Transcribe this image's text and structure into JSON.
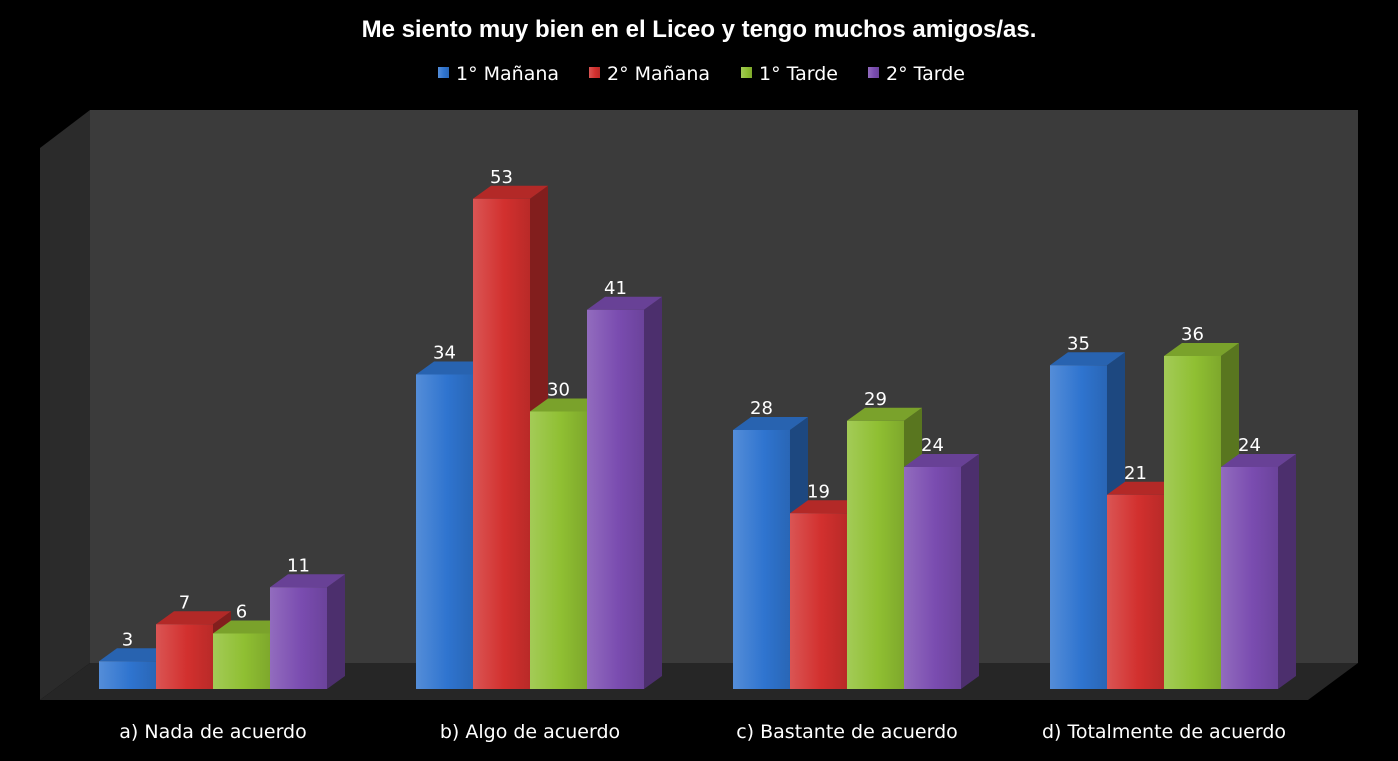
{
  "chart_data": {
    "type": "bar",
    "title": "Me siento muy bien en el Liceo y tengo muchos amigos/as.",
    "categories": [
      "a) Nada de acuerdo",
      "b) Algo de acuerdo",
      "c) Bastante de acuerdo",
      "d) Totalmente de acuerdo"
    ],
    "series": [
      {
        "name": "1° Mañana",
        "values": [
          3,
          34,
          28,
          35
        ],
        "color": "#2f74cf"
      },
      {
        "name": "2° Mañana",
        "values": [
          7,
          53,
          19,
          21
        ],
        "color": "#d2302e"
      },
      {
        "name": "1° Tarde",
        "values": [
          6,
          30,
          29,
          36
        ],
        "color": "#8fbf32"
      },
      {
        "name": "2° Tarde",
        "values": [
          11,
          41,
          24,
          24
        ],
        "color": "#7a4cb0"
      }
    ],
    "ylim": [
      0,
      55
    ],
    "grid": false,
    "legend_position": "top",
    "style": "3d-clustered-column",
    "background": "#000000"
  }
}
